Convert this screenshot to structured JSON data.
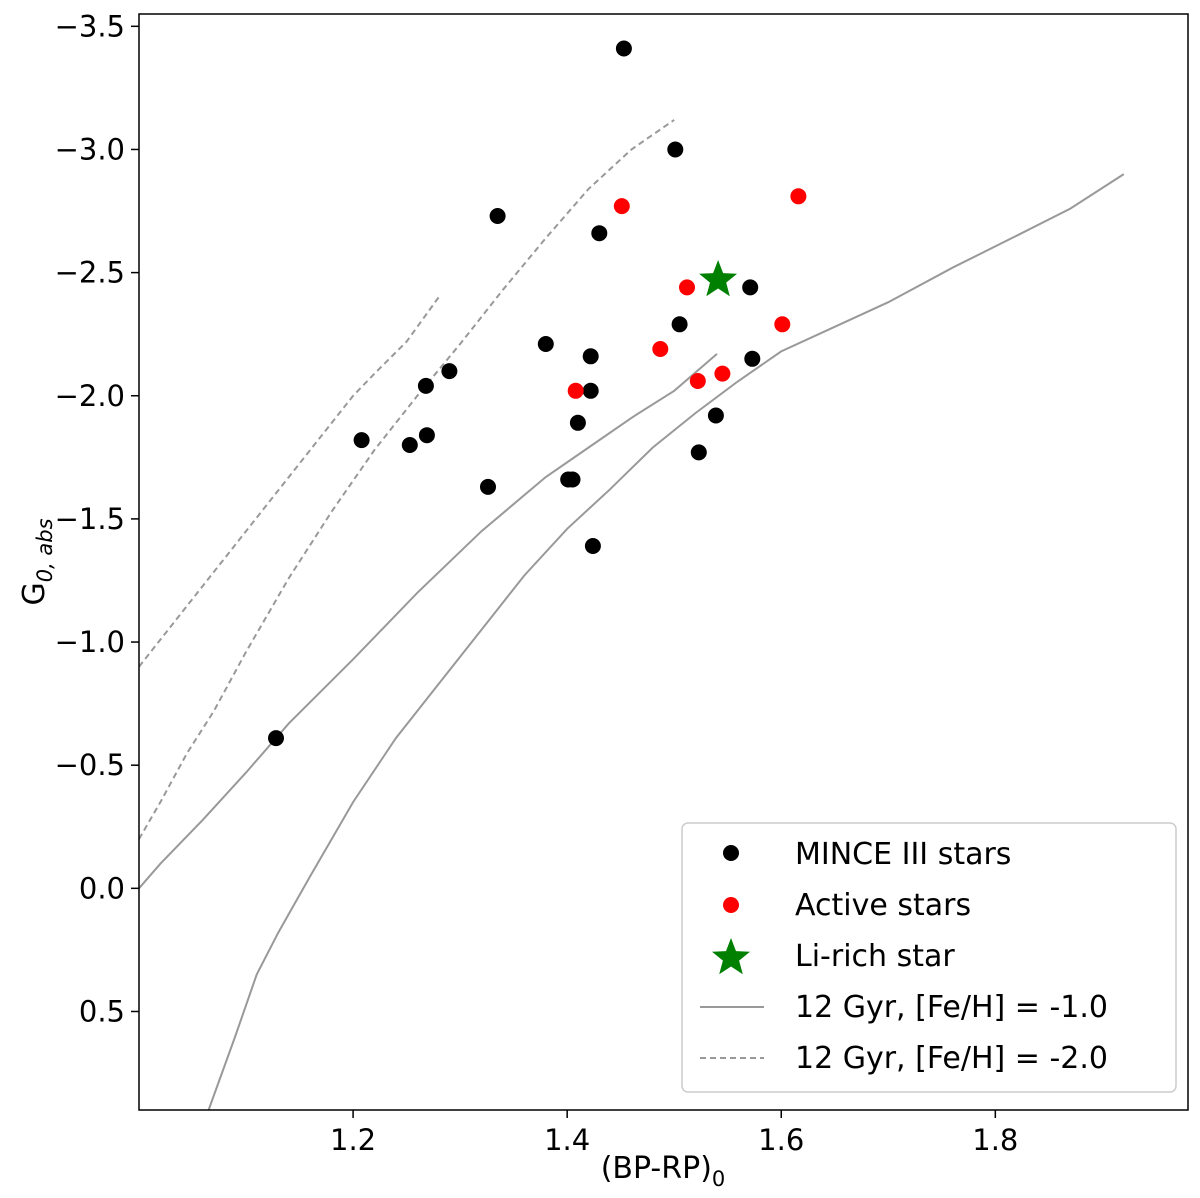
{
  "chart_data": {
    "type": "scatter",
    "xlabel": "(BP-RP)",
    "xlabel_sub": "0",
    "ylabel": "G",
    "ylabel_sub": "0, abs",
    "xlim": [
      1.0,
      1.98
    ],
    "ylim": [
      0.9,
      -3.55
    ],
    "y_inverted": true,
    "grid": false,
    "legend_position": "lower-right",
    "xticks": [
      1.2,
      1.4,
      1.6,
      1.8
    ],
    "xtick_labels": [
      "1.2",
      "1.4",
      "1.6",
      "1.8"
    ],
    "yticks": [
      -3.5,
      -3.0,
      -2.5,
      -2.0,
      -1.5,
      -1.0,
      -0.5,
      0.0,
      0.5
    ],
    "ytick_labels": [
      "−3.5",
      "−3.0",
      "−2.5",
      "−2.0",
      "−1.5",
      "−1.0",
      "−0.5",
      "0.0",
      "0.5"
    ],
    "series": [
      {
        "name": "MINCE III stars",
        "kind": "points",
        "marker": "circle",
        "color": "#000000",
        "points": [
          [
            1.453,
            -3.41
          ],
          [
            1.501,
            -3.0
          ],
          [
            1.335,
            -2.73
          ],
          [
            1.43,
            -2.66
          ],
          [
            1.571,
            -2.44
          ],
          [
            1.505,
            -2.29
          ],
          [
            1.38,
            -2.21
          ],
          [
            1.29,
            -2.1
          ],
          [
            1.422,
            -2.16
          ],
          [
            1.573,
            -2.15
          ],
          [
            1.268,
            -2.04
          ],
          [
            1.422,
            -2.02
          ],
          [
            1.41,
            -1.89
          ],
          [
            1.539,
            -1.92
          ],
          [
            1.208,
            -1.82
          ],
          [
            1.253,
            -1.8
          ],
          [
            1.269,
            -1.84
          ],
          [
            1.523,
            -1.77
          ],
          [
            1.401,
            -1.66
          ],
          [
            1.405,
            -1.66
          ],
          [
            1.326,
            -1.63
          ],
          [
            1.424,
            -1.39
          ],
          [
            1.128,
            -0.61
          ]
        ]
      },
      {
        "name": "Active stars",
        "kind": "points",
        "marker": "circle",
        "color": "#ff0000",
        "points": [
          [
            1.451,
            -2.77
          ],
          [
            1.616,
            -2.81
          ],
          [
            1.512,
            -2.44
          ],
          [
            1.601,
            -2.29
          ],
          [
            1.487,
            -2.19
          ],
          [
            1.408,
            -2.02
          ],
          [
            1.522,
            -2.06
          ],
          [
            1.545,
            -2.09
          ]
        ]
      },
      {
        "name": "Li-rich star",
        "kind": "points",
        "marker": "star",
        "color": "#008000",
        "points": [
          [
            1.541,
            -2.47
          ]
        ]
      },
      {
        "name": "12 Gyr, [Fe/H] = -1.0",
        "kind": "line",
        "style": "solid",
        "color": "#999999",
        "segments": [
          [
            [
              1.0,
              0.0
            ],
            [
              1.02,
              -0.1
            ],
            [
              1.06,
              -0.28
            ],
            [
              1.1,
              -0.47
            ],
            [
              1.14,
              -0.67
            ],
            [
              1.2,
              -0.93
            ],
            [
              1.26,
              -1.2
            ],
            [
              1.32,
              -1.45
            ],
            [
              1.38,
              -1.67
            ],
            [
              1.42,
              -1.79
            ],
            [
              1.46,
              -1.91
            ],
            [
              1.5,
              -2.02
            ],
            [
              1.54,
              -2.17
            ]
          ],
          [
            [
              1.065,
              0.9
            ],
            [
              1.09,
              0.6
            ],
            [
              1.11,
              0.35
            ],
            [
              1.13,
              0.18
            ],
            [
              1.16,
              -0.05
            ],
            [
              1.2,
              -0.35
            ],
            [
              1.24,
              -0.61
            ],
            [
              1.28,
              -0.83
            ],
            [
              1.32,
              -1.05
            ],
            [
              1.36,
              -1.27
            ],
            [
              1.4,
              -1.46
            ],
            [
              1.44,
              -1.62
            ],
            [
              1.48,
              -1.79
            ],
            [
              1.52,
              -1.93
            ],
            [
              1.56,
              -2.06
            ],
            [
              1.6,
              -2.18
            ],
            [
              1.64,
              -2.26
            ],
            [
              1.7,
              -2.38
            ],
            [
              1.76,
              -2.52
            ],
            [
              1.82,
              -2.65
            ],
            [
              1.87,
              -2.76
            ],
            [
              1.92,
              -2.9
            ]
          ]
        ]
      },
      {
        "name": "12 Gyr, [Fe/H] = -2.0",
        "kind": "line",
        "style": "dashed",
        "color": "#999999",
        "segments": [
          [
            [
              1.0,
              -0.9
            ],
            [
              1.04,
              -1.12
            ],
            [
              1.08,
              -1.34
            ],
            [
              1.12,
              -1.56
            ],
            [
              1.16,
              -1.78
            ],
            [
              1.2,
              -2.0
            ],
            [
              1.22,
              -2.09
            ],
            [
              1.25,
              -2.22
            ],
            [
              1.28,
              -2.4
            ]
          ],
          [
            [
              1.0,
              -0.2
            ],
            [
              1.02,
              -0.35
            ],
            [
              1.045,
              -0.55
            ],
            [
              1.07,
              -0.72
            ],
            [
              1.1,
              -0.96
            ],
            [
              1.14,
              -1.26
            ],
            [
              1.18,
              -1.53
            ],
            [
              1.22,
              -1.78
            ],
            [
              1.26,
              -2.0
            ],
            [
              1.3,
              -2.21
            ],
            [
              1.34,
              -2.43
            ],
            [
              1.38,
              -2.64
            ],
            [
              1.42,
              -2.84
            ],
            [
              1.46,
              -3.0
            ],
            [
              1.5,
              -3.12
            ]
          ]
        ]
      }
    ]
  }
}
